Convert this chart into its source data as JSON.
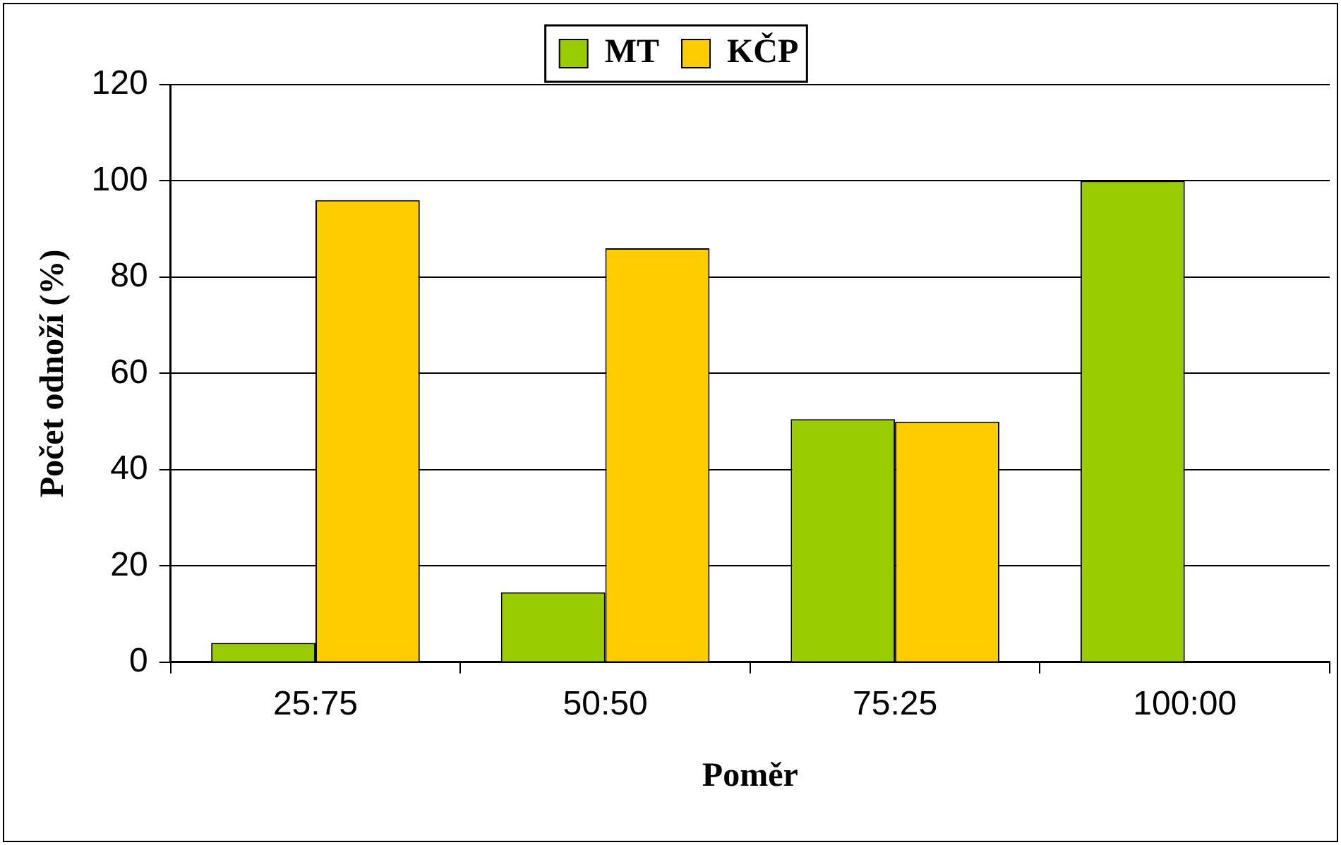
{
  "chart_data": {
    "type": "bar",
    "xlabel": "Poměr",
    "ylabel": "Počet odnoží (%)",
    "categories": [
      "25:75",
      "50:50",
      "75:25",
      "100:00"
    ],
    "series": [
      {
        "name": "MT",
        "color": "#99cc00",
        "values": [
          4,
          14.5,
          50.5,
          100
        ]
      },
      {
        "name": "KČP",
        "color": "#ffcc00",
        "values": [
          96,
          86,
          50,
          null
        ]
      }
    ],
    "ylim": [
      0,
      120
    ],
    "yticks": [
      0,
      20,
      40,
      60,
      80,
      100,
      120
    ],
    "grid": "y",
    "legend": "top"
  }
}
